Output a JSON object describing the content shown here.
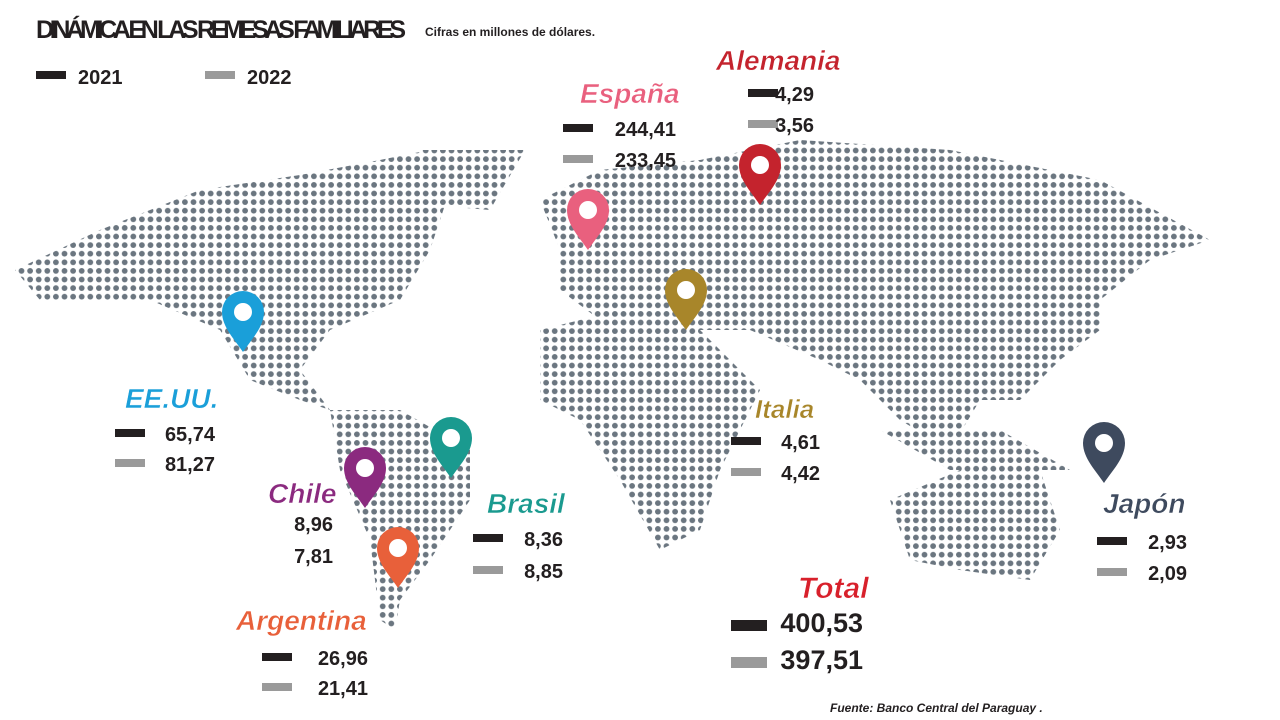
{
  "header": {
    "title": "DINÁMICA EN LAS REMESAS FAMILIARES",
    "subtitle": "Cifras en millones de dólares."
  },
  "legend": [
    {
      "label": "2021",
      "color": "#231f20"
    },
    {
      "label": "2022",
      "color": "#9a9a9a"
    }
  ],
  "regions": [
    {
      "name": "EE.UU.",
      "color": "#1a9fd9",
      "values": [
        "65,74",
        "81,27"
      ]
    },
    {
      "name": "Chile",
      "color": "#8b2a7f",
      "values": [
        "8,96",
        "7,81"
      ]
    },
    {
      "name": "Brasil",
      "color": "#1a9a8f",
      "values": [
        "8,36",
        "8,85"
      ]
    },
    {
      "name": "Argentina",
      "color": "#e8603a",
      "values": [
        "26,96",
        "21,41"
      ]
    },
    {
      "name": "España",
      "color": "#e9607e",
      "values": [
        "244,41",
        "233,45"
      ]
    },
    {
      "name": "Alemania",
      "color": "#c4232d",
      "values": [
        "4,29",
        "3,56"
      ]
    },
    {
      "name": "Italia",
      "color": "#a8862a",
      "values": [
        "4,61",
        "4,42"
      ]
    },
    {
      "name": "Japón",
      "color": "#3e4a5e",
      "values": [
        "2,93",
        "2,09"
      ]
    },
    {
      "name": "Total",
      "color": "#d8202b",
      "values": [
        "400,53",
        "397,51"
      ]
    }
  ],
  "source": "Fuente: Banco Central del Paraguay ."
}
